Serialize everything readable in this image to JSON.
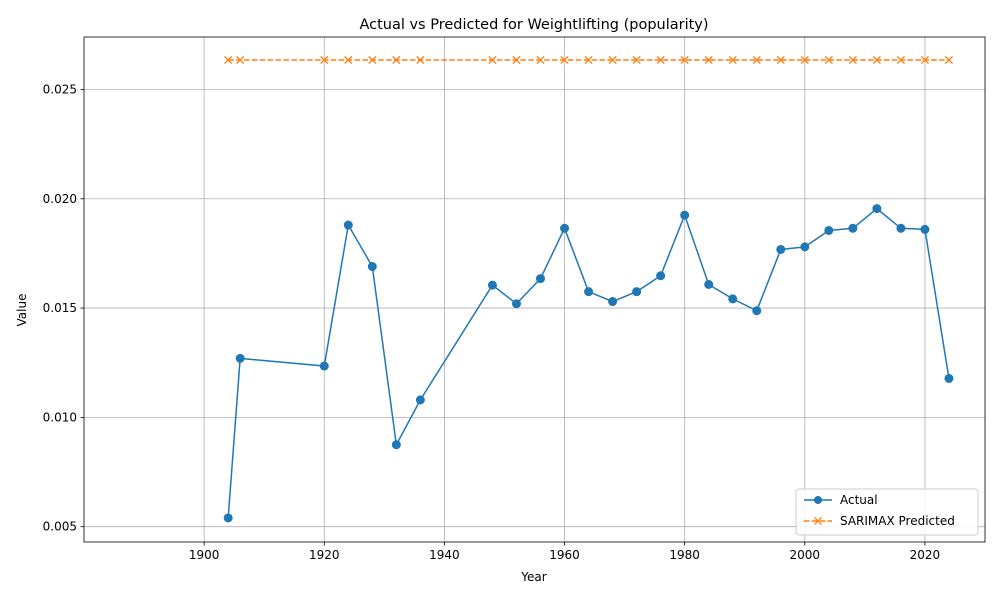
{
  "chart_data": {
    "type": "line",
    "title": "Actual vs Predicted for Weightlifting (popularity)",
    "xlabel": "Year",
    "ylabel": "Value",
    "xlim": [
      1880,
      2030
    ],
    "ylim": [
      0.0043,
      0.0274
    ],
    "xticks": [
      1900,
      1920,
      1940,
      1960,
      1980,
      2000,
      2020
    ],
    "xtick_labels": [
      "1900",
      "1920",
      "1940",
      "1960",
      "1980",
      "2000",
      "2020"
    ],
    "yticks": [
      0.005,
      0.01,
      0.015,
      0.02,
      0.025
    ],
    "ytick_labels": [
      "0.005",
      "0.010",
      "0.015",
      "0.020",
      "0.025"
    ],
    "grid": true,
    "legend_position": "lower-right",
    "x": [
      1904,
      1906,
      1920,
      1924,
      1928,
      1932,
      1936,
      1948,
      1952,
      1956,
      1960,
      1964,
      1968,
      1972,
      1976,
      1980,
      1984,
      1988,
      1992,
      1996,
      2000,
      2004,
      2008,
      2012,
      2016,
      2020,
      2024
    ],
    "series": [
      {
        "name": "Actual",
        "color": "#1f77b4",
        "marker": "circle",
        "linestyle": "solid",
        "values": [
          0.0054,
          0.0127,
          0.01235,
          0.0188,
          0.0169,
          0.00875,
          0.0108,
          0.01605,
          0.0152,
          0.01635,
          0.01865,
          0.01575,
          0.0153,
          0.01575,
          0.01648,
          0.01925,
          0.01608,
          0.01542,
          0.01488,
          0.01768,
          0.0178,
          0.01855,
          0.01865,
          0.01955,
          0.01865,
          0.0186,
          0.01178
        ]
      },
      {
        "name": "SARIMAX Predicted",
        "color": "#ff7f0e",
        "marker": "x",
        "linestyle": "dashed",
        "values": [
          0.02635,
          0.02635,
          0.02635,
          0.02635,
          0.02635,
          0.02635,
          0.02635,
          0.02635,
          0.02635,
          0.02635,
          0.02635,
          0.02635,
          0.02635,
          0.02635,
          0.02635,
          0.02635,
          0.02635,
          0.02635,
          0.02635,
          0.02635,
          0.02635,
          0.02635,
          0.02635,
          0.02635,
          0.02635,
          0.02635,
          0.02635
        ]
      }
    ]
  }
}
